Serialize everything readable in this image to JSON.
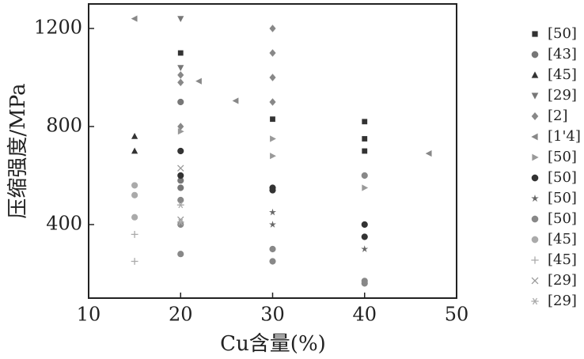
{
  "chart_data": {
    "type": "scatter",
    "x_label": "Cu含量(%)",
    "y_label": "压缩强度/MPa",
    "xlim": [
      10,
      50
    ],
    "xticks": [
      10,
      20,
      30,
      40,
      50
    ],
    "ylim": [
      100,
      1300
    ],
    "yticks": [
      400,
      800,
      1200
    ],
    "series": [
      {
        "name": "[50]",
        "marker": "square",
        "color": "#333333",
        "x": [
          20,
          30,
          40,
          40,
          40
        ],
        "values": [
          1100,
          830,
          820,
          750,
          700
        ]
      },
      {
        "name": "[43]",
        "marker": "circle",
        "color": "#777777",
        "x": [
          20,
          20,
          20
        ],
        "values": [
          900,
          580,
          550
        ]
      },
      {
        "name": "[45]",
        "marker": "triangle-up",
        "color": "#333333",
        "x": [
          15,
          15
        ],
        "values": [
          760,
          700
        ]
      },
      {
        "name": "[29]",
        "marker": "triangle-down",
        "color": "#777777",
        "x": [
          20,
          20
        ],
        "values": [
          1240,
          1040
        ]
      },
      {
        "name": "[2]",
        "marker": "diamond",
        "color": "#888888",
        "x": [
          20,
          20,
          20,
          30,
          30,
          30,
          30
        ],
        "values": [
          1010,
          980,
          800,
          1200,
          1100,
          1000,
          900
        ]
      },
      {
        "name": "[1'4]",
        "marker": "triangle-left",
        "color": "#888888",
        "x": [
          15,
          22,
          26,
          47
        ],
        "values": [
          1240,
          985,
          905,
          690
        ]
      },
      {
        "name": "[50]",
        "marker": "triangle-right",
        "color": "#999999",
        "x": [
          20,
          30,
          30,
          40
        ],
        "values": [
          780,
          750,
          680,
          550
        ]
      },
      {
        "name": "[50]",
        "marker": "circle",
        "color": "#333333",
        "x": [
          20,
          20,
          30,
          30,
          40,
          40
        ],
        "values": [
          700,
          600,
          550,
          540,
          400,
          350
        ]
      },
      {
        "name": "[50]",
        "marker": "star",
        "color": "#666666",
        "x": [
          30,
          30,
          40
        ],
        "values": [
          450,
          400,
          300
        ]
      },
      {
        "name": "[50]",
        "marker": "circle",
        "color": "#888888",
        "x": [
          20,
          20,
          20,
          30,
          30,
          40,
          40,
          40
        ],
        "values": [
          500,
          400,
          280,
          300,
          250,
          600,
          170,
          160
        ]
      },
      {
        "name": "[45]",
        "marker": "circle",
        "color": "#aaaaaa",
        "x": [
          15,
          15,
          15
        ],
        "values": [
          560,
          520,
          430
        ]
      },
      {
        "name": "[45]",
        "marker": "plus",
        "color": "#aaaaaa",
        "x": [
          15,
          15
        ],
        "values": [
          360,
          250
        ]
      },
      {
        "name": "[29]",
        "marker": "cross",
        "color": "#999999",
        "x": [
          20,
          20
        ],
        "values": [
          630,
          420
        ]
      },
      {
        "name": "[29]",
        "marker": "asterisk",
        "color": "#aaaaaa",
        "x": [
          20,
          20
        ],
        "values": [
          480,
          410
        ]
      }
    ]
  }
}
